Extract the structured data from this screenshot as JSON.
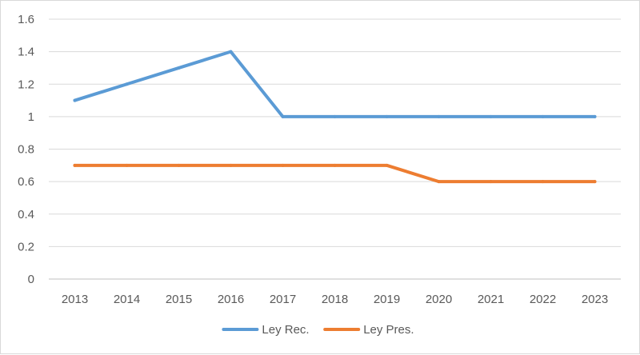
{
  "chart_data": {
    "type": "line",
    "title": "",
    "xlabel": "",
    "ylabel": "",
    "categories": [
      "2013",
      "2014",
      "2015",
      "2016",
      "2017",
      "2018",
      "2019",
      "2020",
      "2021",
      "2022",
      "2023"
    ],
    "ylim": [
      0,
      1.6
    ],
    "yticks": [
      "0",
      "0.2",
      "0.4",
      "0.6",
      "0.8",
      "1",
      "1.2",
      "1.4",
      "1.6"
    ],
    "grid": true,
    "legend_position": "bottom",
    "series": [
      {
        "name": "Ley Rec.",
        "color": "#5b9bd5",
        "values": [
          1.1,
          1.2,
          1.3,
          1.4,
          1.0,
          1.0,
          1.0,
          1.0,
          1.0,
          1.0,
          1.0
        ]
      },
      {
        "name": "Ley Pres.",
        "color": "#ed7d31",
        "values": [
          0.7,
          0.7,
          0.7,
          0.7,
          0.7,
          0.7,
          0.7,
          0.6,
          0.6,
          0.6,
          0.6
        ]
      }
    ]
  }
}
